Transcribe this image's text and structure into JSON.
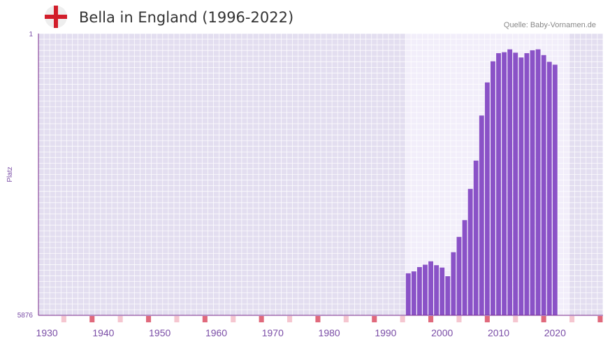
{
  "header": {
    "title": "Bella in England (1996-2022)",
    "source": "Quelle: Baby-Vornamen.de",
    "flag_icon": "england-flag-icon"
  },
  "chart_data": {
    "type": "bar",
    "title": "Bella in England (1996-2022)",
    "xlabel": "",
    "ylabel": "Platz",
    "y_axis_inverted": true,
    "ylim": [
      5876,
      1
    ],
    "y_tick_labels": [
      "1",
      "5876"
    ],
    "x_tick_labels": [
      "1930",
      "1940",
      "1950",
      "1960",
      "1970",
      "1980",
      "1990",
      "2000",
      "2010",
      "2020"
    ],
    "xlim": [
      1929,
      2029
    ],
    "highlight_range": [
      1996,
      2022
    ],
    "x": [
      1994,
      1995,
      1996,
      1997,
      1998,
      1999,
      2000,
      2001,
      2002,
      2003,
      2004,
      2005,
      2006,
      2007,
      2008,
      2009,
      2010,
      2011,
      2012,
      2013,
      2014,
      2015,
      2016,
      2017,
      2018,
      2019,
      2020
    ],
    "values": [
      5000,
      4960,
      4870,
      4820,
      4750,
      4830,
      4880,
      5060,
      4560,
      4240,
      3890,
      3240,
      2650,
      1710,
      1020,
      580,
      410,
      390,
      330,
      400,
      500,
      410,
      350,
      330,
      450,
      590,
      650
    ],
    "colors": {
      "bar": "#8a52c7",
      "plot_bg": "#e3def0",
      "highlight_bg": "#f2eefa",
      "grid": "#ffffff",
      "axis": "#7a2a8c",
      "marker_strong": "#e0697c",
      "marker_light": "#f5c6d0"
    }
  }
}
